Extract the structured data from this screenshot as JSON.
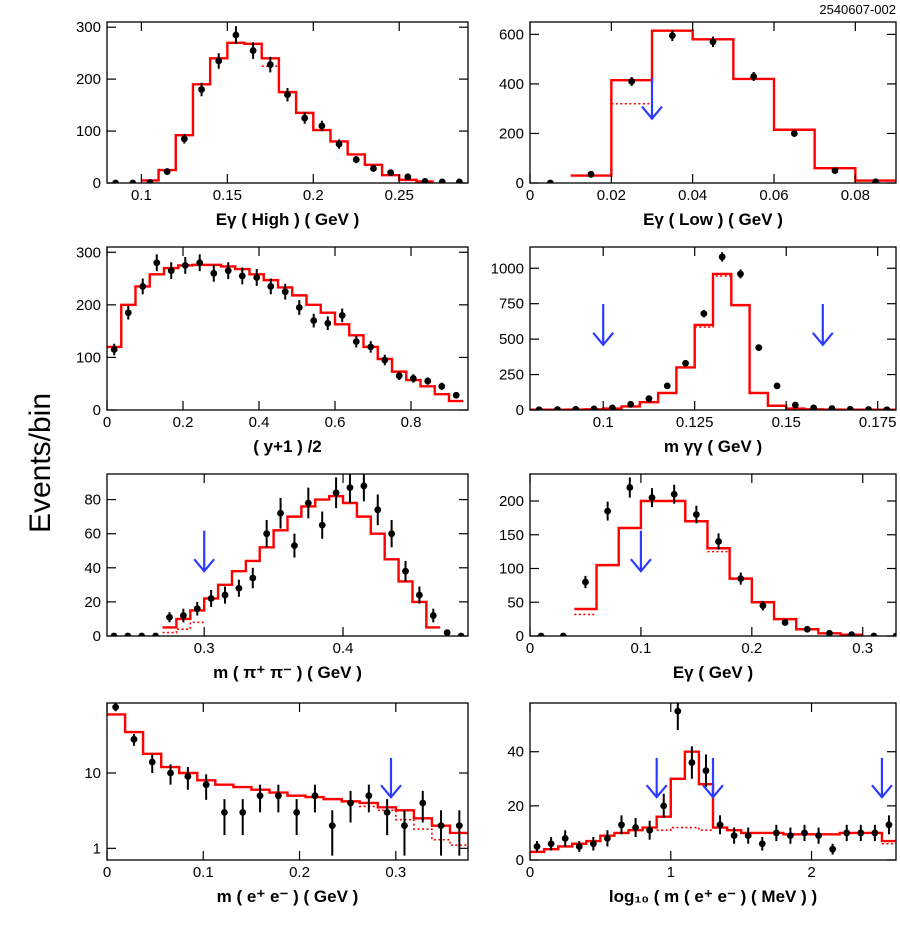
{
  "figure_code": "2540607-002",
  "y_label": "Events/bin",
  "colors": {
    "mc": "#ff0000",
    "cut_arrow": "#2b3bff",
    "data": "#000000"
  },
  "chart_data": [
    {
      "type": "line",
      "xlabel": "Eγ ( High ) ( GeV )",
      "xlim": [
        0.08,
        0.29
      ],
      "ylim": [
        0,
        310
      ],
      "yscale": "linear",
      "xticks": [
        0.1,
        0.15,
        0.2,
        0.25
      ],
      "xtick_labels": [
        "0.1",
        "0.15",
        "0.2",
        "0.25"
      ],
      "yticks": [
        0,
        100,
        200,
        300
      ],
      "ytick_labels": [
        "0",
        "100",
        "200",
        "300"
      ],
      "mc_solid": {
        "edges": [
          0.1,
          0.11,
          0.12,
          0.13,
          0.14,
          0.15,
          0.16,
          0.17,
          0.18,
          0.19,
          0.2,
          0.21,
          0.22,
          0.23,
          0.24,
          0.25,
          0.26,
          0.27
        ],
        "values": [
          5,
          25,
          92,
          190,
          240,
          270,
          268,
          240,
          175,
          135,
          102,
          80,
          55,
          35,
          15,
          6,
          3
        ]
      },
      "mc_dotted": {
        "edges": [
          0.17,
          0.18
        ],
        "values": [
          225
        ]
      },
      "points": {
        "x": [
          0.085,
          0.095,
          0.105,
          0.115,
          0.125,
          0.135,
          0.145,
          0.155,
          0.165,
          0.175,
          0.185,
          0.195,
          0.205,
          0.215,
          0.225,
          0.235,
          0.245,
          0.255,
          0.265,
          0.275,
          0.285
        ],
        "y": [
          0,
          0,
          1,
          22,
          85,
          180,
          235,
          285,
          255,
          228,
          170,
          125,
          110,
          75,
          45,
          28,
          20,
          12,
          3,
          2,
          2
        ],
        "err": [
          0,
          0,
          1,
          5,
          9,
          13,
          15,
          17,
          16,
          15,
          13,
          11,
          10,
          9,
          7,
          5,
          4,
          3,
          2,
          1,
          1
        ]
      },
      "arrows": []
    },
    {
      "type": "line",
      "xlabel": "Eγ ( Low ) ( GeV )",
      "xlim": [
        0,
        0.09
      ],
      "ylim": [
        0,
        650
      ],
      "yscale": "linear",
      "xticks": [
        0,
        0.02,
        0.04,
        0.06,
        0.08
      ],
      "xtick_labels": [
        "0",
        "0.02",
        "0.04",
        "0.06",
        "0.08"
      ],
      "yticks": [
        0,
        200,
        400,
        600
      ],
      "ytick_labels": [
        "0",
        "200",
        "400",
        "600"
      ],
      "mc_solid": {
        "edges": [
          0.01,
          0.02,
          0.03,
          0.04,
          0.05,
          0.06,
          0.07,
          0.08,
          0.09
        ],
        "values": [
          30,
          415,
          615,
          580,
          420,
          215,
          60,
          10
        ]
      },
      "mc_dotted": {
        "edges": [
          0.02,
          0.03
        ],
        "values": [
          320
        ]
      },
      "points": {
        "x": [
          0.005,
          0.015,
          0.025,
          0.035,
          0.045,
          0.055,
          0.065,
          0.075,
          0.085
        ],
        "y": [
          0,
          35,
          410,
          595,
          570,
          430,
          200,
          50,
          5
        ],
        "err": [
          0,
          6,
          18,
          22,
          21,
          18,
          13,
          7,
          2
        ]
      },
      "arrows": [
        0.03
      ]
    },
    {
      "type": "line",
      "xlabel": "( y+1 ) /2",
      "xlim": [
        0,
        0.95
      ],
      "ylim": [
        0,
        310
      ],
      "yscale": "linear",
      "xticks": [
        0,
        0.2,
        0.4,
        0.6,
        0.8
      ],
      "xtick_labels": [
        "0",
        "0.2",
        "0.4",
        "0.6",
        "0.8"
      ],
      "yticks": [
        0,
        100,
        200,
        300
      ],
      "ytick_labels": [
        "0",
        "100",
        "200",
        "300"
      ],
      "mc_solid": {
        "edges": [
          0,
          0.0375,
          0.075,
          0.1125,
          0.15,
          0.1875,
          0.225,
          0.2625,
          0.3,
          0.3375,
          0.375,
          0.4125,
          0.45,
          0.4875,
          0.525,
          0.5625,
          0.6,
          0.6375,
          0.675,
          0.7125,
          0.75,
          0.7875,
          0.825,
          0.8625,
          0.9,
          0.9375
        ],
        "values": [
          120,
          200,
          235,
          258,
          270,
          275,
          276,
          276,
          273,
          268,
          258,
          247,
          233,
          218,
          200,
          185,
          163,
          142,
          120,
          97,
          73,
          57,
          45,
          30,
          17
        ]
      },
      "mc_dotted": null,
      "points": {
        "x": [
          0.019,
          0.056,
          0.094,
          0.131,
          0.169,
          0.206,
          0.244,
          0.281,
          0.319,
          0.356,
          0.394,
          0.431,
          0.469,
          0.506,
          0.544,
          0.581,
          0.619,
          0.656,
          0.694,
          0.731,
          0.769,
          0.806,
          0.844,
          0.881,
          0.919
        ],
        "y": [
          115,
          185,
          235,
          280,
          265,
          275,
          280,
          260,
          265,
          255,
          252,
          235,
          225,
          195,
          170,
          165,
          180,
          130,
          120,
          95,
          65,
          60,
          55,
          45,
          28
        ],
        "err": [
          11,
          13,
          15,
          16,
          16,
          16,
          16,
          16,
          16,
          16,
          16,
          15,
          15,
          14,
          13,
          13,
          13,
          11,
          11,
          10,
          8,
          8,
          7,
          7,
          5
        ]
      },
      "arrows": []
    },
    {
      "type": "line",
      "xlabel": "m γγ ( GeV )",
      "xlim": [
        0.08,
        0.18
      ],
      "ylim": [
        0,
        1150
      ],
      "yscale": "linear",
      "xticks": [
        0.1,
        0.125,
        0.15,
        0.175
      ],
      "xtick_labels": [
        "0.1",
        "0.125",
        "0.15",
        "0.175"
      ],
      "yticks": [
        0,
        250,
        500,
        750,
        1000
      ],
      "ytick_labels": [
        "0",
        "250",
        "500",
        "750",
        "1000"
      ],
      "mc_solid": {
        "edges": [
          0.08,
          0.085,
          0.09,
          0.095,
          0.1,
          0.105,
          0.11,
          0.115,
          0.12,
          0.125,
          0.13,
          0.135,
          0.14,
          0.145,
          0.15,
          0.155,
          0.16,
          0.165,
          0.17,
          0.175,
          0.18
        ],
        "values": [
          2,
          2,
          3,
          5,
          10,
          25,
          55,
          120,
          300,
          600,
          960,
          740,
          120,
          30,
          10,
          5,
          3,
          2,
          2,
          2
        ]
      },
      "mc_dotted": {
        "edges": [
          0.125,
          0.13,
          0.135
        ],
        "values": [
          585,
          945
        ]
      },
      "points": {
        "x": [
          0.0825,
          0.0875,
          0.0925,
          0.0975,
          0.1025,
          0.1075,
          0.1125,
          0.1175,
          0.1225,
          0.1275,
          0.1325,
          0.1375,
          0.1425,
          0.1475,
          0.1525,
          0.1575,
          0.1625,
          0.1675,
          0.1725,
          0.1775
        ],
        "y": [
          2,
          3,
          5,
          8,
          15,
          40,
          80,
          170,
          330,
          680,
          1080,
          960,
          440,
          170,
          35,
          15,
          10,
          5,
          3,
          2
        ],
        "err": [
          2,
          2,
          2,
          3,
          4,
          6,
          9,
          13,
          18,
          26,
          33,
          31,
          21,
          13,
          6,
          4,
          3,
          2,
          2,
          1
        ]
      },
      "arrows": [
        0.1,
        0.16
      ]
    },
    {
      "type": "line",
      "xlabel": "m ( π⁺ π⁻ ) ( GeV )",
      "xlim": [
        0.23,
        0.49
      ],
      "ylim": [
        0,
        95
      ],
      "yscale": "linear",
      "xticks": [
        0.3,
        0.4
      ],
      "xtick_labels": [
        "0.3",
        "0.4"
      ],
      "yticks": [
        0,
        20,
        40,
        60,
        80
      ],
      "ytick_labels": [
        "0",
        "20",
        "40",
        "60",
        "80"
      ],
      "mc_solid": {
        "edges": [
          0.27,
          0.28,
          0.29,
          0.3,
          0.31,
          0.32,
          0.33,
          0.34,
          0.35,
          0.36,
          0.37,
          0.38,
          0.39,
          0.4,
          0.41,
          0.42,
          0.43,
          0.44,
          0.45,
          0.46,
          0.47
        ],
        "values": [
          5,
          10,
          15,
          22,
          30,
          38,
          44,
          52,
          62,
          70,
          76,
          80,
          82,
          78,
          70,
          60,
          45,
          32,
          20,
          5
        ]
      },
      "mc_dotted": {
        "edges": [
          0.27,
          0.28,
          0.29,
          0.3
        ],
        "values": [
          2,
          4,
          8
        ]
      },
      "points": {
        "x": [
          0.235,
          0.245,
          0.255,
          0.265,
          0.275,
          0.285,
          0.295,
          0.305,
          0.315,
          0.325,
          0.335,
          0.345,
          0.355,
          0.365,
          0.375,
          0.385,
          0.395,
          0.405,
          0.415,
          0.425,
          0.435,
          0.445,
          0.455,
          0.465,
          0.475,
          0.485
        ],
        "y": [
          0,
          0,
          0,
          0,
          11,
          12,
          16,
          22,
          24,
          28,
          34,
          60,
          72,
          53,
          78,
          65,
          84,
          87,
          88,
          74,
          60,
          38,
          24,
          12,
          2,
          0
        ],
        "err": [
          0,
          0,
          0,
          0,
          3,
          4,
          4,
          5,
          5,
          5,
          6,
          8,
          9,
          7,
          9,
          8,
          9,
          9,
          9,
          9,
          8,
          6,
          5,
          4,
          1,
          0
        ]
      },
      "arrows": [
        0.3
      ]
    },
    {
      "type": "line",
      "xlabel": "Eγ ( GeV )",
      "xlim": [
        0,
        0.33
      ],
      "ylim": [
        0,
        240
      ],
      "yscale": "linear",
      "xticks": [
        0,
        0.1,
        0.2,
        0.3
      ],
      "xtick_labels": [
        "0",
        "0.1",
        "0.2",
        "0.3"
      ],
      "yticks": [
        0,
        50,
        100,
        150,
        200
      ],
      "ytick_labels": [
        "0",
        "50",
        "100",
        "150",
        "200"
      ],
      "mc_solid": {
        "edges": [
          0.04,
          0.06,
          0.08,
          0.1,
          0.12,
          0.14,
          0.16,
          0.18,
          0.2,
          0.22,
          0.24,
          0.26,
          0.28,
          0.3
        ],
        "values": [
          40,
          105,
          160,
          200,
          200,
          170,
          130,
          85,
          50,
          25,
          10,
          4,
          2
        ]
      },
      "mc_dotted": {
        "edges": [
          0.04,
          0.06,
          0.16,
          0.18
        ],
        "values": [
          32,
          null,
          125
        ]
      },
      "points": {
        "x": [
          0.01,
          0.03,
          0.05,
          0.07,
          0.09,
          0.11,
          0.13,
          0.15,
          0.17,
          0.19,
          0.21,
          0.23,
          0.25,
          0.27,
          0.29,
          0.31,
          0.33
        ],
        "y": [
          0,
          0,
          80,
          185,
          220,
          205,
          210,
          180,
          140,
          85,
          45,
          20,
          10,
          4,
          2,
          0,
          0
        ],
        "err": [
          0,
          0,
          9,
          14,
          15,
          14,
          14,
          13,
          12,
          9,
          7,
          4,
          3,
          2,
          1,
          0,
          0
        ]
      },
      "arrows": [
        0.1
      ]
    },
    {
      "type": "line",
      "xlabel": "m ( e⁺ e⁻ ) ( GeV )",
      "xlim": [
        0,
        0.375
      ],
      "ylim": [
        0.7,
        85
      ],
      "yscale": "log",
      "xticks": [
        0,
        0.1,
        0.2,
        0.3
      ],
      "xtick_labels": [
        "0",
        "0.1",
        "0.2",
        "0.3"
      ],
      "yticks": [
        1,
        10
      ],
      "ytick_labels": [
        "1",
        "10"
      ],
      "mc_solid": {
        "edges": [
          0,
          0.0188,
          0.0375,
          0.0563,
          0.075,
          0.0938,
          0.1125,
          0.1313,
          0.15,
          0.1688,
          0.1875,
          0.2063,
          0.225,
          0.2438,
          0.2625,
          0.2813,
          0.3,
          0.3188,
          0.3375,
          0.3563,
          0.375
        ],
        "values": [
          60,
          35,
          18,
          12,
          10,
          8,
          7,
          6.5,
          6,
          5.5,
          5,
          4.8,
          4.5,
          4.2,
          4,
          3.5,
          3.2,
          2.5,
          2,
          1.6
        ]
      },
      "mc_dotted": {
        "edges": [
          0.2438,
          0.2625,
          0.2813,
          0.3,
          0.3188,
          0.3375,
          0.3563,
          0.375
        ],
        "values": [
          4.2,
          3.6,
          3.2,
          2.4,
          1.8,
          1.3,
          1.1
        ]
      },
      "points": {
        "x": [
          0.009,
          0.028,
          0.047,
          0.066,
          0.084,
          0.103,
          0.122,
          0.141,
          0.159,
          0.178,
          0.197,
          0.216,
          0.234,
          0.253,
          0.272,
          0.291,
          0.309,
          0.328,
          0.347,
          0.366
        ],
        "y": [
          75,
          28,
          14,
          10,
          9,
          7,
          3,
          3,
          5,
          5,
          3,
          5,
          2,
          4,
          5,
          3,
          2,
          4,
          2,
          2
        ],
        "err": [
          9,
          5,
          4,
          3,
          3,
          2.6,
          1.5,
          1.5,
          2,
          2,
          1.5,
          2,
          1.2,
          1.8,
          2,
          1.5,
          1.2,
          1.8,
          1.2,
          1.2
        ]
      },
      "arrows": [
        0.295
      ]
    },
    {
      "type": "line",
      "xlabel": "log₁₀ ( m ( e⁺ e⁻ ) ( MeV ) )",
      "xlim": [
        0,
        2.6
      ],
      "ylim": [
        0,
        58
      ],
      "yscale": "linear",
      "xticks": [
        0,
        1,
        2
      ],
      "xtick_labels": [
        "0",
        "1",
        "2"
      ],
      "yticks": [
        0,
        20,
        40
      ],
      "ytick_labels": [
        "0",
        "20",
        "40"
      ],
      "mc_solid": {
        "edges": [
          0,
          0.1,
          0.2,
          0.3,
          0.4,
          0.5,
          0.6,
          0.7,
          0.8,
          0.9,
          1,
          1.1,
          1.2,
          1.3,
          1.4,
          1.5,
          1.6,
          1.7,
          1.8,
          1.9,
          2,
          2.1,
          2.2,
          2.3,
          2.4,
          2.5,
          2.6
        ],
        "values": [
          3,
          4,
          5,
          6,
          7,
          9,
          10,
          11,
          12,
          16,
          30,
          40,
          28,
          12,
          11,
          10,
          10,
          10,
          9.5,
          9.5,
          9.5,
          9.5,
          10,
          10,
          10,
          7
        ]
      },
      "mc_dotted": {
        "edges": [
          0.9,
          1,
          1.1,
          1.2,
          1.3,
          2.5,
          2.6
        ],
        "values": [
          11,
          12,
          12,
          11,
          null,
          6
        ]
      },
      "points": {
        "x": [
          0.05,
          0.15,
          0.25,
          0.35,
          0.45,
          0.55,
          0.65,
          0.75,
          0.85,
          0.95,
          1.05,
          1.15,
          1.25,
          1.35,
          1.45,
          1.55,
          1.65,
          1.75,
          1.85,
          1.95,
          2.05,
          2.15,
          2.25,
          2.35,
          2.45,
          2.55
        ],
        "y": [
          5,
          6,
          8,
          5,
          6,
          8,
          13,
          12,
          11,
          20,
          55,
          36,
          33,
          13,
          9,
          9,
          6,
          10,
          9,
          10,
          9,
          4,
          10,
          10,
          10,
          13
        ],
        "err": [
          2,
          2.5,
          3,
          2,
          2.5,
          3,
          3.5,
          3.5,
          3.5,
          4.5,
          7,
          6,
          6,
          3.5,
          3,
          3,
          2.5,
          3,
          3,
          3,
          3,
          2,
          3,
          3,
          3,
          3.5
        ]
      },
      "arrows": [
        0.9,
        1.3,
        2.5
      ]
    }
  ]
}
